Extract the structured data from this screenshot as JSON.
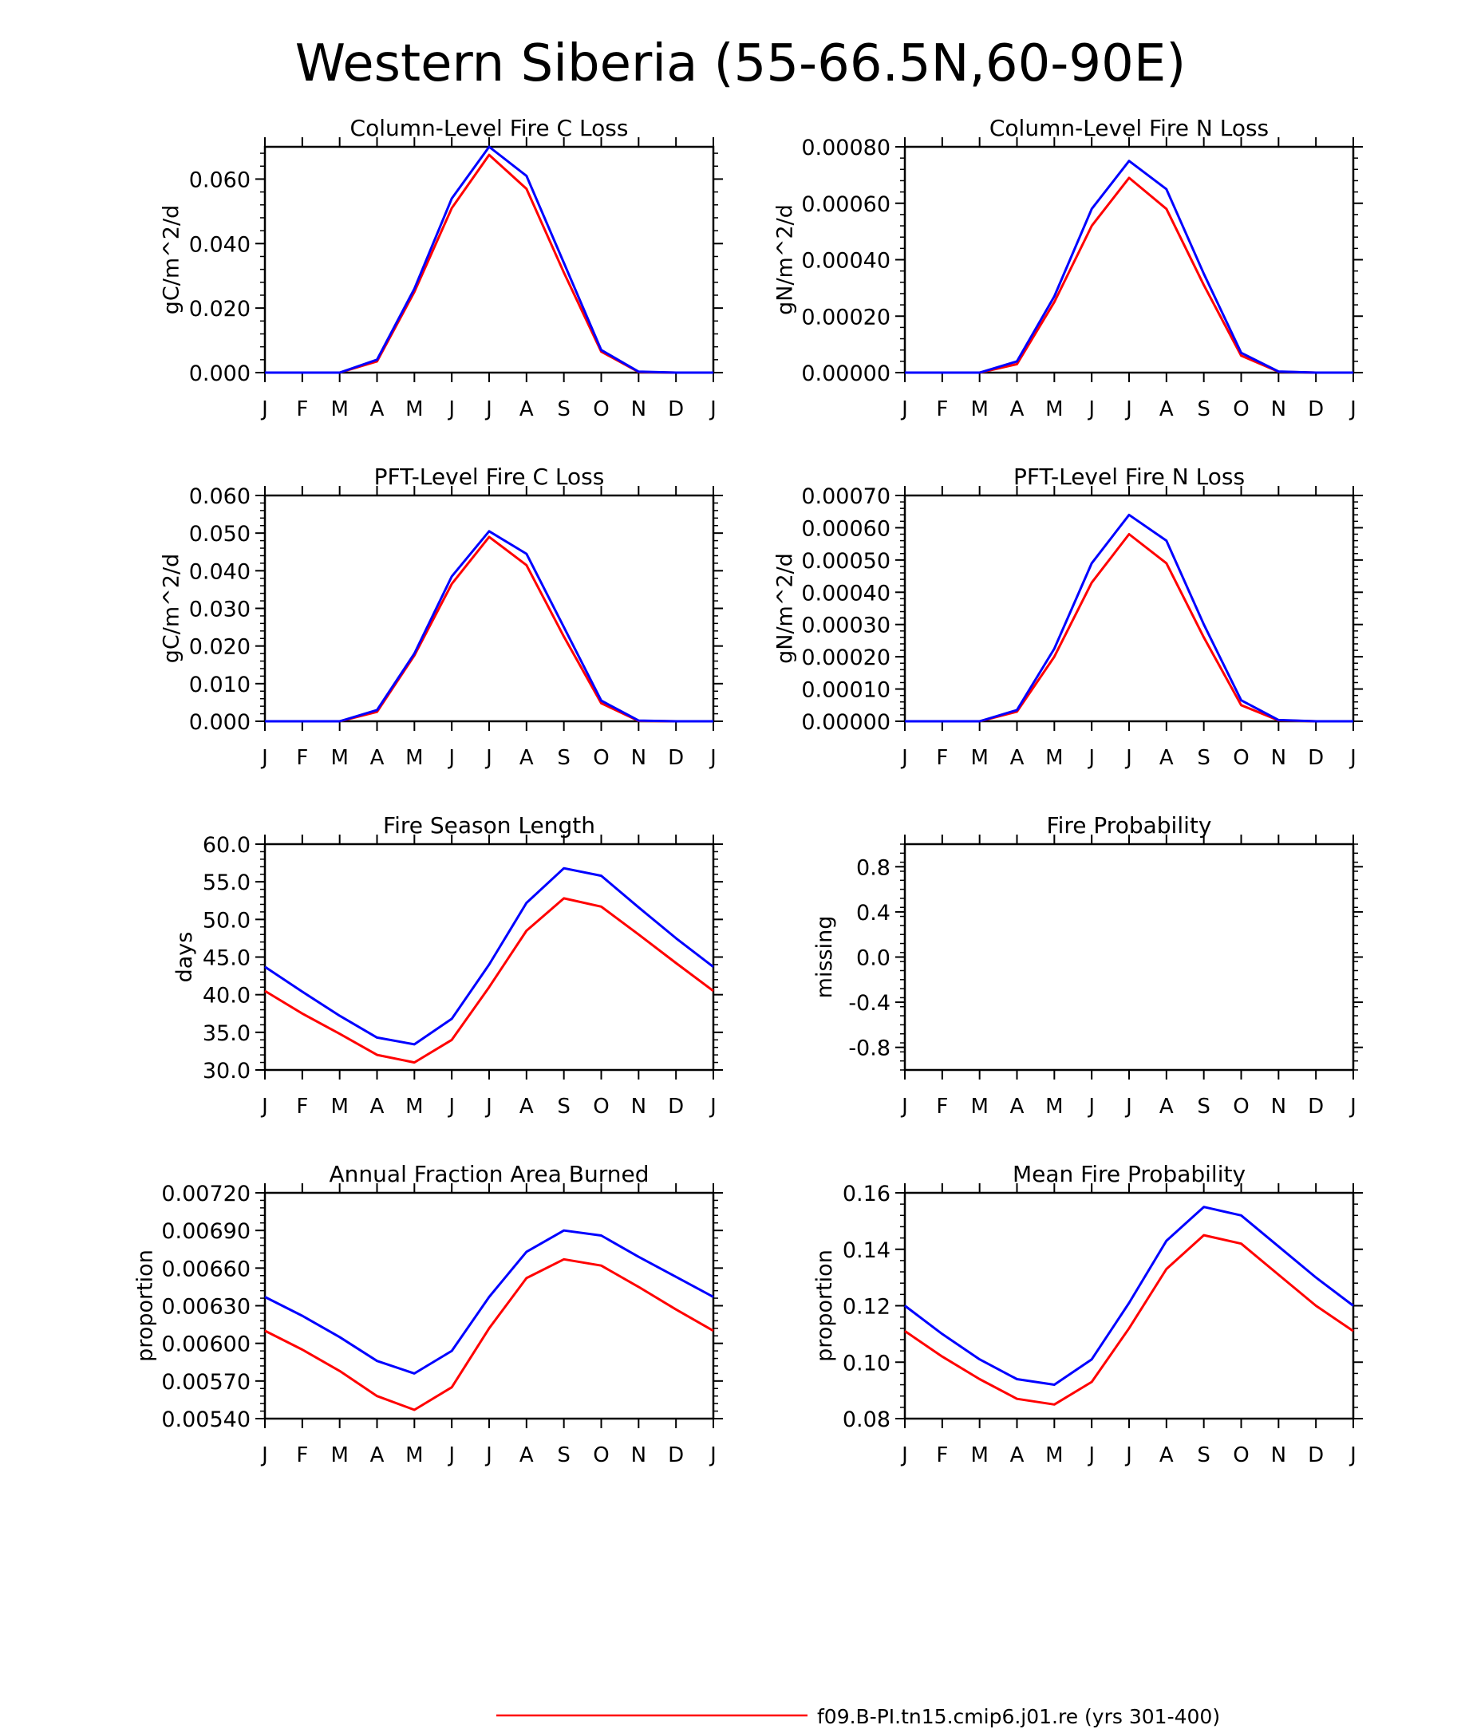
{
  "page_title": "Western Siberia (55-66.5N,60-90E)",
  "legend": {
    "label": "f09.B-PI.tn15.cmip6.j01.re (yrs 301-400)",
    "color": "#ff0000"
  },
  "colors": {
    "series_a": "#ff0000",
    "series_b": "#0000ff",
    "axis": "#000000"
  },
  "chart_data": [
    {
      "id": "col-fire-c",
      "type": "line",
      "title": "Column-Level Fire C Loss",
      "ylabel": "gC/m^2/d",
      "xlabel": "",
      "categories": [
        "J",
        "F",
        "M",
        "A",
        "M",
        "J",
        "J",
        "A",
        "S",
        "O",
        "N",
        "D",
        "J"
      ],
      "ylim": [
        0,
        0.07
      ],
      "yticks": [
        0.0,
        0.02,
        0.04,
        0.06
      ],
      "ytick_labels": [
        "0.000",
        "0.020",
        "0.040",
        "0.060"
      ],
      "series": [
        {
          "color": "#ff0000",
          "values": [
            0,
            0,
            0,
            0.0035,
            0.025,
            0.051,
            0.0675,
            0.057,
            0.031,
            0.0065,
            0.0002,
            0,
            0
          ]
        },
        {
          "color": "#0000ff",
          "values": [
            0,
            0,
            0,
            0.004,
            0.026,
            0.054,
            0.07,
            0.061,
            0.034,
            0.007,
            0.0003,
            0,
            0
          ]
        }
      ]
    },
    {
      "id": "col-fire-n",
      "type": "line",
      "title": "Column-Level Fire N Loss",
      "ylabel": "gN/m^2/d",
      "xlabel": "",
      "categories": [
        "J",
        "F",
        "M",
        "A",
        "M",
        "J",
        "J",
        "A",
        "S",
        "O",
        "N",
        "D",
        "J"
      ],
      "ylim": [
        0,
        0.0008
      ],
      "yticks": [
        0.0,
        0.0002,
        0.0004,
        0.0006,
        0.0008
      ],
      "ytick_labels": [
        "0.00000",
        "0.00020",
        "0.00040",
        "0.00060",
        "0.00080"
      ],
      "series": [
        {
          "color": "#ff0000",
          "values": [
            0,
            0,
            0,
            3e-05,
            0.00025,
            0.00052,
            0.00069,
            0.00058,
            0.00031,
            6e-05,
            3e-06,
            0,
            0
          ]
        },
        {
          "color": "#0000ff",
          "values": [
            0,
            0,
            0,
            4e-05,
            0.00027,
            0.00058,
            0.00075,
            0.00065,
            0.00035,
            7e-05,
            4e-06,
            0,
            0
          ]
        }
      ]
    },
    {
      "id": "pft-fire-c",
      "type": "line",
      "title": "PFT-Level Fire C Loss",
      "ylabel": "gC/m^2/d",
      "xlabel": "",
      "categories": [
        "J",
        "F",
        "M",
        "A",
        "M",
        "J",
        "J",
        "A",
        "S",
        "O",
        "N",
        "D",
        "J"
      ],
      "ylim": [
        0,
        0.06
      ],
      "yticks": [
        0.0,
        0.01,
        0.02,
        0.03,
        0.04,
        0.05,
        0.06
      ],
      "ytick_labels": [
        "0.000",
        "0.010",
        "0.020",
        "0.030",
        "0.040",
        "0.050",
        "0.060"
      ],
      "series": [
        {
          "color": "#ff0000",
          "values": [
            0,
            0,
            0,
            0.0025,
            0.0175,
            0.0365,
            0.049,
            0.0415,
            0.0225,
            0.0048,
            0.0001,
            0,
            0
          ]
        },
        {
          "color": "#0000ff",
          "values": [
            0,
            0,
            0,
            0.003,
            0.018,
            0.0385,
            0.0505,
            0.0445,
            0.025,
            0.0055,
            0.0002,
            0,
            0
          ]
        }
      ]
    },
    {
      "id": "pft-fire-n",
      "type": "line",
      "title": "PFT-Level Fire N Loss",
      "ylabel": "gN/m^2/d",
      "xlabel": "",
      "categories": [
        "J",
        "F",
        "M",
        "A",
        "M",
        "J",
        "J",
        "A",
        "S",
        "O",
        "N",
        "D",
        "J"
      ],
      "ylim": [
        0,
        0.0007
      ],
      "yticks": [
        0.0,
        0.0001,
        0.0002,
        0.0003,
        0.0004,
        0.0005,
        0.0006,
        0.0007
      ],
      "ytick_labels": [
        "0.00000",
        "0.00010",
        "0.00020",
        "0.00030",
        "0.00040",
        "0.00050",
        "0.00060",
        "0.00070"
      ],
      "series": [
        {
          "color": "#ff0000",
          "values": [
            0,
            0,
            0,
            3e-05,
            0.0002,
            0.00043,
            0.00058,
            0.00049,
            0.00026,
            5e-05,
            3e-06,
            0,
            0
          ]
        },
        {
          "color": "#0000ff",
          "values": [
            0,
            0,
            0,
            3.5e-05,
            0.000225,
            0.00049,
            0.00064,
            0.00056,
            0.0003,
            6.5e-05,
            4e-06,
            0,
            0
          ]
        }
      ]
    },
    {
      "id": "fire-season-length",
      "type": "line",
      "title": "Fire Season Length",
      "ylabel": "days",
      "xlabel": "",
      "categories": [
        "J",
        "F",
        "M",
        "A",
        "M",
        "J",
        "J",
        "A",
        "S",
        "O",
        "N",
        "D",
        "J"
      ],
      "ylim": [
        30,
        60
      ],
      "yticks": [
        30,
        35,
        40,
        45,
        50,
        55,
        60
      ],
      "ytick_labels": [
        "30.0",
        "35.0",
        "40.0",
        "45.0",
        "50.0",
        "55.0",
        "60.0"
      ],
      "series": [
        {
          "color": "#ff0000",
          "values": [
            40.5,
            37.5,
            34.8,
            32.0,
            31.0,
            34.0,
            41.0,
            48.5,
            52.8,
            51.7,
            48.0,
            44.2,
            40.5
          ]
        },
        {
          "color": "#0000ff",
          "values": [
            43.7,
            40.4,
            37.2,
            34.3,
            33.4,
            36.8,
            44.0,
            52.2,
            56.8,
            55.8,
            51.6,
            47.5,
            43.7
          ]
        }
      ]
    },
    {
      "id": "fire-probability",
      "type": "line",
      "title": "Fire Probability",
      "ylabel": "missing",
      "xlabel": "",
      "categories": [
        "J",
        "F",
        "M",
        "A",
        "M",
        "J",
        "J",
        "A",
        "S",
        "O",
        "N",
        "D",
        "J"
      ],
      "ylim": [
        -1.0,
        1.0
      ],
      "yticks": [
        -0.8,
        -0.4,
        0.0,
        0.4,
        0.8
      ],
      "ytick_labels": [
        "-0.8",
        "-0.4",
        "0.0",
        "0.4",
        "0.8"
      ],
      "series": []
    },
    {
      "id": "annual-fraction-burned",
      "type": "line",
      "title": "Annual Fraction Area Burned",
      "ylabel": "proportion",
      "xlabel": "",
      "categories": [
        "J",
        "F",
        "M",
        "A",
        "M",
        "J",
        "J",
        "A",
        "S",
        "O",
        "N",
        "D",
        "J"
      ],
      "ylim": [
        0.0054,
        0.0072
      ],
      "yticks": [
        0.0054,
        0.0057,
        0.006,
        0.0063,
        0.0066,
        0.0069,
        0.0072
      ],
      "ytick_labels": [
        "0.00540",
        "0.00570",
        "0.00600",
        "0.00630",
        "0.00660",
        "0.00690",
        "0.00720"
      ],
      "series": [
        {
          "color": "#ff0000",
          "values": [
            0.0061,
            0.00595,
            0.00578,
            0.00558,
            0.00547,
            0.00565,
            0.00612,
            0.00652,
            0.00667,
            0.00662,
            0.00645,
            0.00627,
            0.0061
          ]
        },
        {
          "color": "#0000ff",
          "values": [
            0.00637,
            0.00622,
            0.00605,
            0.00586,
            0.00576,
            0.00594,
            0.00637,
            0.00673,
            0.0069,
            0.00686,
            0.00669,
            0.00653,
            0.00637
          ]
        }
      ]
    },
    {
      "id": "mean-fire-probability",
      "type": "line",
      "title": "Mean Fire Probability",
      "ylabel": "proportion",
      "xlabel": "",
      "categories": [
        "J",
        "F",
        "M",
        "A",
        "M",
        "J",
        "J",
        "A",
        "S",
        "O",
        "N",
        "D",
        "J"
      ],
      "ylim": [
        0.08,
        0.16
      ],
      "yticks": [
        0.08,
        0.1,
        0.12,
        0.14,
        0.16
      ],
      "ytick_labels": [
        "0.08",
        "0.10",
        "0.12",
        "0.14",
        "0.16"
      ],
      "series": [
        {
          "color": "#ff0000",
          "values": [
            0.111,
            0.102,
            0.094,
            0.087,
            0.085,
            0.093,
            0.112,
            0.133,
            0.145,
            0.142,
            0.131,
            0.12,
            0.111
          ]
        },
        {
          "color": "#0000ff",
          "values": [
            0.12,
            0.11,
            0.101,
            0.094,
            0.092,
            0.101,
            0.121,
            0.143,
            0.155,
            0.152,
            0.141,
            0.13,
            0.12
          ]
        }
      ]
    }
  ]
}
